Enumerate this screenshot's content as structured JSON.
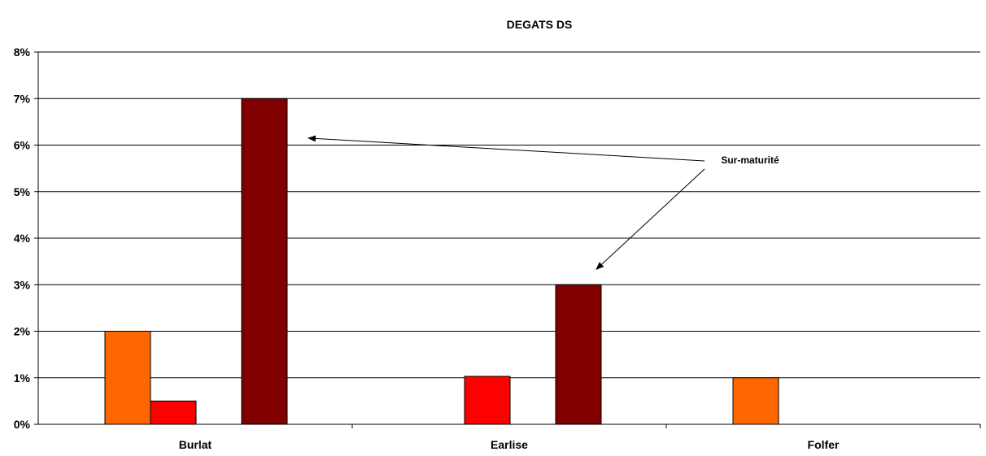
{
  "chart_data": {
    "type": "bar",
    "title": "DEGATS DS",
    "xlabel": "",
    "ylabel": "",
    "categories": [
      "Burlat",
      "Earlise",
      "Folfer"
    ],
    "series": [
      {
        "color": "#FF6600",
        "values": [
          0.02,
          0,
          0.01
        ]
      },
      {
        "color": "#FF0000",
        "values": [
          0.005,
          0.0103,
          0
        ]
      },
      {
        "color": "#F0F0E0",
        "values": [
          0,
          0,
          0
        ]
      },
      {
        "color": "#800000",
        "values": [
          0.07,
          0.03,
          0
        ]
      }
    ],
    "ylim": [
      0,
      0.08
    ],
    "yticks": [
      "0%",
      "1%",
      "2%",
      "3%",
      "4%",
      "5%",
      "6%",
      "7%",
      "8%"
    ],
    "grid": true,
    "legend": "none",
    "annotations": [
      {
        "text": "Sur-maturité",
        "arrows_to": [
          "Burlat",
          "Earlise"
        ]
      }
    ]
  }
}
